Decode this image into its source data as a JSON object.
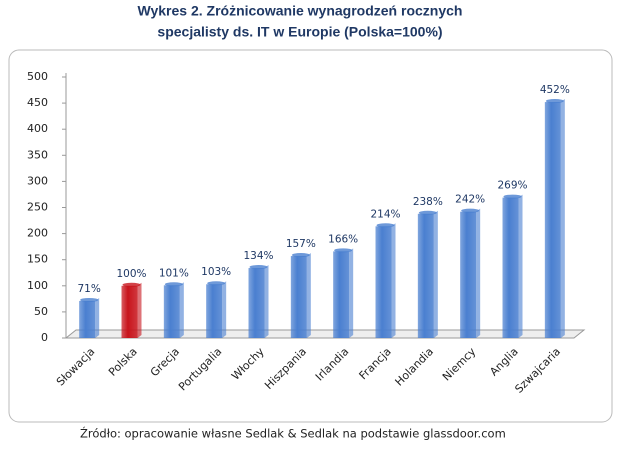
{
  "chart_data": {
    "type": "bar",
    "title": [
      "Wykres 2. Zróżnicowanie wynagrodzeń rocznych",
      "specjalisty ds. IT w Europie (Polska=100%)"
    ],
    "categories": [
      "Słowacja",
      "Polska",
      "Grecja",
      "Portugalia",
      "Włochy",
      "Hiszpania",
      "Irlandia",
      "Francja",
      "Holandia",
      "Niemcy",
      "Anglia",
      "Szwajcaria"
    ],
    "values": [
      71,
      100,
      101,
      103,
      134,
      157,
      166,
      214,
      238,
      242,
      269,
      452
    ],
    "value_labels": [
      "71%",
      "100%",
      "101%",
      "103%",
      "134%",
      "157%",
      "166%",
      "214%",
      "238%",
      "242%",
      "269%",
      "452%"
    ],
    "colors": [
      "#4a7fd0",
      "#c8141c",
      "#4a7fd0",
      "#4a7fd0",
      "#4a7fd0",
      "#4a7fd0",
      "#4a7fd0",
      "#4a7fd0",
      "#4a7fd0",
      "#4a7fd0",
      "#4a7fd0",
      "#4a7fd0"
    ],
    "ylim": [
      0,
      500
    ],
    "yticks": [
      0,
      50,
      100,
      150,
      200,
      250,
      300,
      350,
      400,
      450,
      500
    ],
    "grid": false,
    "source": "Źródło: opracowanie własne Sedlak & Sedlak na podstawie glassdoor.com"
  }
}
